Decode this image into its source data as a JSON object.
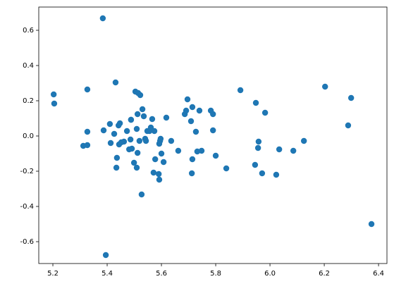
{
  "chart_data": {
    "type": "scatter",
    "color": "#1f77b4",
    "x": [
      5.203,
      5.205,
      5.384,
      5.387,
      5.312,
      5.327,
      5.327,
      5.327,
      5.395,
      5.41,
      5.413,
      5.431,
      5.426,
      5.434,
      5.436,
      5.442,
      5.444,
      5.447,
      5.452,
      5.462,
      5.473,
      5.481,
      5.486,
      5.488,
      5.488,
      5.491,
      5.499,
      5.504,
      5.509,
      5.509,
      5.512,
      5.514,
      5.519,
      5.522,
      5.527,
      5.53,
      5.535,
      5.54,
      5.543,
      5.548,
      5.556,
      5.561,
      5.566,
      5.571,
      5.574,
      5.577,
      5.59,
      5.592,
      5.592,
      5.595,
      5.597,
      5.6,
      5.608,
      5.618,
      5.636,
      5.662,
      5.686,
      5.691,
      5.696,
      5.709,
      5.712,
      5.714,
      5.714,
      5.727,
      5.732,
      5.74,
      5.748,
      5.782,
      5.79,
      5.79,
      5.8,
      5.839,
      5.891,
      5.945,
      5.948,
      5.956,
      5.958,
      5.971,
      5.982,
      6.023,
      6.034,
      6.086,
      6.125,
      6.203,
      6.288,
      6.299,
      6.374,
      5.512
    ],
    "values": [
      0.236,
      0.184,
      0.668,
      0.032,
      -0.056,
      -0.052,
      0.024,
      0.264,
      -0.676,
      0.068,
      -0.04,
      0.304,
      0.012,
      -0.18,
      -0.124,
      0.06,
      -0.048,
      0.072,
      -0.036,
      -0.032,
      0.028,
      -0.076,
      -0.02,
      0.092,
      0.092,
      -0.072,
      -0.152,
      0.252,
      0.04,
      -0.18,
      -0.096,
      0.244,
      -0.028,
      0.232,
      -0.332,
      0.152,
      0.112,
      -0.016,
      -0.028,
      0.028,
      0.028,
      0.048,
      0.096,
      -0.208,
      0.028,
      -0.132,
      -0.216,
      -0.248,
      -0.044,
      -0.028,
      -0.016,
      -0.1,
      -0.148,
      0.104,
      -0.028,
      -0.084,
      0.124,
      0.144,
      0.208,
      0.084,
      -0.212,
      -0.132,
      0.164,
      0.024,
      -0.088,
      0.144,
      -0.084,
      0.144,
      0.032,
      0.124,
      -0.112,
      -0.184,
      0.26,
      -0.164,
      0.188,
      -0.068,
      -0.032,
      -0.212,
      0.132,
      -0.22,
      -0.076,
      -0.084,
      -0.028,
      0.28,
      0.06,
      0.216,
      -0.5,
      0.124
    ],
    "xlim": [
      5.148,
      6.431
    ],
    "ylim": [
      -0.724,
      0.732
    ],
    "xticks": [
      5.2,
      5.4,
      5.6,
      5.8,
      6.0,
      6.2,
      6.4
    ],
    "yticks": [
      -0.6,
      -0.4,
      -0.2,
      0.0,
      0.2,
      0.4,
      0.6
    ]
  }
}
